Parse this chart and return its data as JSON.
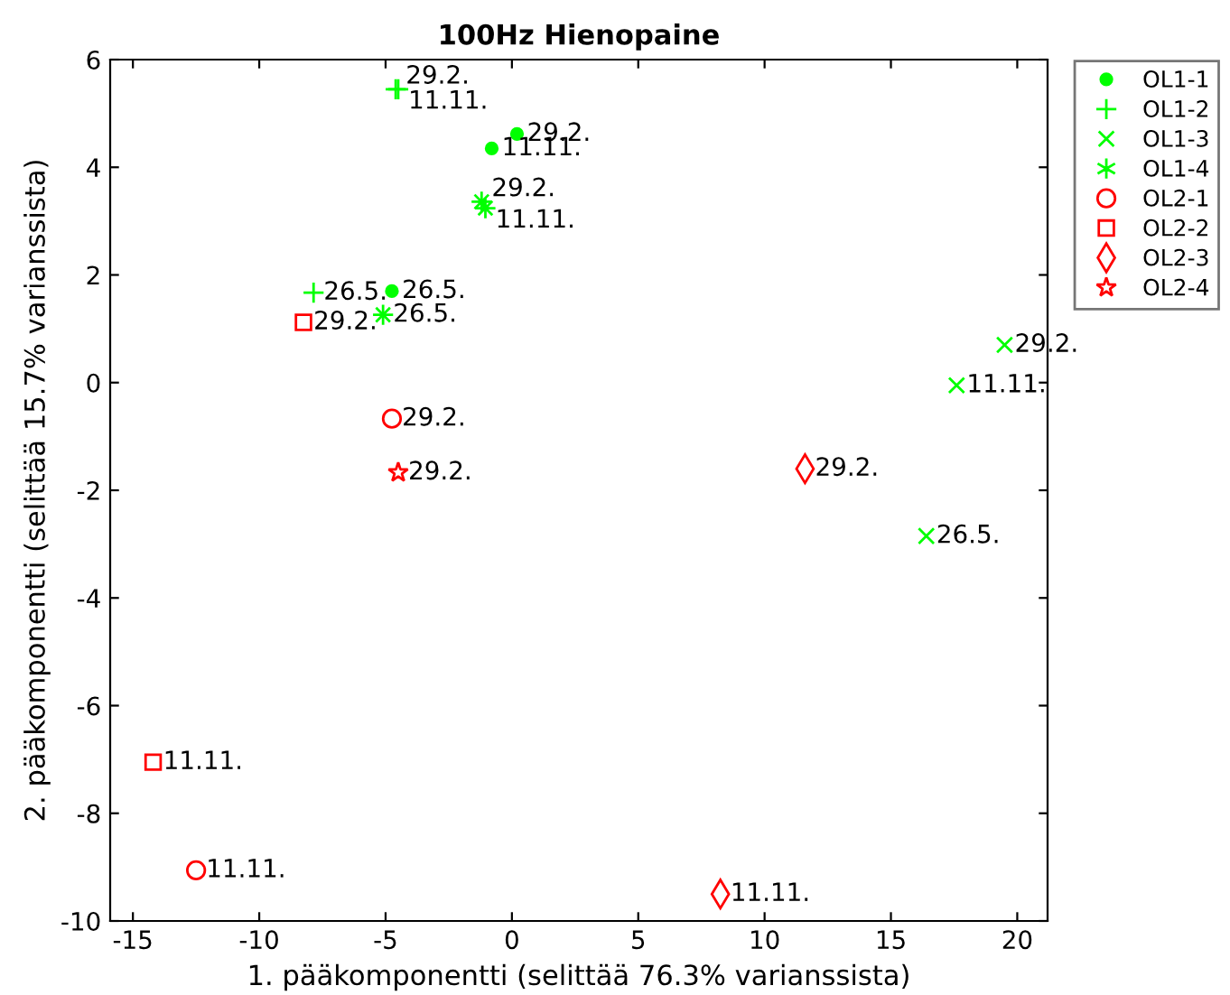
{
  "chart_data": {
    "type": "scatter",
    "title": "100Hz Hienopaine",
    "xlabel": "1. pääkomponentti (selittää 76.3% varianssista)",
    "ylabel": "2. pääkomponentti (selittää 15.7% varianssista)",
    "xlim": [
      -15.9,
      21.2
    ],
    "ylim": [
      -10,
      6
    ],
    "xticks": [
      -15,
      -10,
      -5,
      0,
      5,
      10,
      15,
      20
    ],
    "yticks": [
      -10,
      -8,
      -6,
      -4,
      -2,
      0,
      2,
      4,
      6
    ],
    "grid": false,
    "legend": "top right",
    "series": [
      {
        "name": "OL1-1",
        "color": "#00ff00",
        "marker": "point",
        "x": [
          0.2,
          -0.8,
          -4.75
        ],
        "values": [
          4.62,
          4.35,
          1.7
        ]
      },
      {
        "name": "OL1-2",
        "color": "#00ff00",
        "marker": "plus",
        "x": [
          -4.6,
          -4.5,
          -7.85
        ],
        "values": [
          5.45,
          5.45,
          1.67
        ]
      },
      {
        "name": "OL1-3",
        "color": "#00ff00",
        "marker": "cross",
        "x": [
          19.5,
          17.6,
          16.4
        ],
        "values": [
          0.7,
          -0.05,
          -2.85
        ]
      },
      {
        "name": "OL1-4",
        "color": "#00ff00",
        "x": [
          -1.2,
          -1.05,
          -5.1
        ],
        "values": [
          3.36,
          3.24,
          1.26
        ]
      },
      {
        "name": "OL2-1",
        "color": "#ff0000",
        "marker": "circle",
        "x": [
          -4.75,
          -12.5
        ],
        "values": [
          -0.67,
          -9.06
        ]
      },
      {
        "name": "OL2-2",
        "color": "#ff0000",
        "marker": "square",
        "x": [
          -8.25,
          -14.2
        ],
        "values": [
          1.12,
          -7.05
        ]
      },
      {
        "name": "OL2-3",
        "color": "#ff0000",
        "marker": "diamond",
        "x": [
          11.6,
          8.25
        ],
        "values": [
          -1.6,
          -9.5
        ]
      },
      {
        "name": "OL2-4",
        "color": "#ff0000",
        "marker": "star",
        "x": [
          -4.5
        ],
        "values": [
          -1.67
        ]
      }
    ],
    "annotations": [
      {
        "text": "29.2.",
        "x": -4.6,
        "y": 5.45
      },
      {
        "text": "11.11.",
        "x": -4.5,
        "y": 5.45
      },
      {
        "text": "29.2.",
        "x": 0.2,
        "y": 4.62
      },
      {
        "text": "11.11.",
        "x": -0.8,
        "y": 4.35
      },
      {
        "text": "29.2.",
        "x": -1.2,
        "y": 3.36
      },
      {
        "text": "11.11.",
        "x": -1.05,
        "y": 3.24
      },
      {
        "text": "26.5.",
        "x": -7.85,
        "y": 1.67
      },
      {
        "text": "26.5.",
        "x": -4.75,
        "y": 1.7
      },
      {
        "text": "26.5.",
        "x": -5.1,
        "y": 1.26
      },
      {
        "text": "29.2.",
        "x": -8.25,
        "y": 1.12
      },
      {
        "text": "29.2.",
        "x": 19.5,
        "y": 0.7
      },
      {
        "text": "11.11.",
        "x": 17.6,
        "y": -0.05
      },
      {
        "text": "29.2.",
        "x": -4.75,
        "y": -0.67
      },
      {
        "text": "29.2.",
        "x": 11.6,
        "y": -1.6
      },
      {
        "text": "29.2.",
        "x": -4.5,
        "y": -1.67
      },
      {
        "text": "26.5.",
        "x": 16.4,
        "y": -2.85
      },
      {
        "text": "11.11.",
        "x": -14.2,
        "y": -7.05
      },
      {
        "text": "11.11.",
        "x": -12.5,
        "y": -9.06
      },
      {
        "text": "11.11.",
        "x": 8.25,
        "y": -9.5
      }
    ]
  }
}
